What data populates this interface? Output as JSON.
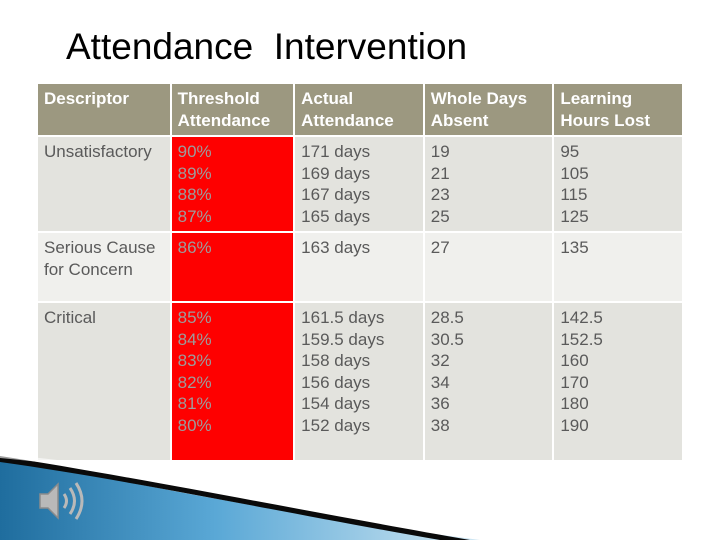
{
  "title": "Attendance  Intervention",
  "table": {
    "headers": [
      [
        "Descriptor"
      ],
      [
        "Threshold",
        "Attendance"
      ],
      [
        "Actual",
        "Attendance"
      ],
      [
        "Whole Days",
        "Absent"
      ],
      [
        "Learning",
        "Hours Lost"
      ]
    ],
    "rows": [
      {
        "descriptor": [
          "Unsatisfactory"
        ],
        "threshold": [
          "90%",
          "89%",
          "88%",
          "87%"
        ],
        "actual": [
          "171 days",
          "169 days",
          "167 days",
          "165 days"
        ],
        "absent": [
          "19",
          "21",
          "23",
          "25"
        ],
        "hours": [
          "95",
          "105",
          "115",
          "125"
        ]
      },
      {
        "descriptor": [
          "Serious Cause",
          "for Concern"
        ],
        "threshold": [
          "86%"
        ],
        "actual": [
          "163 days"
        ],
        "absent": [
          "27"
        ],
        "hours": [
          "135"
        ]
      },
      {
        "descriptor": [
          "Critical"
        ],
        "threshold": [
          "85%",
          "84%",
          "83%",
          "82%",
          "81%",
          "80%"
        ],
        "actual": [
          "161.5 days",
          "159.5 days",
          "158 days",
          "156 days",
          "154 days",
          "152 days"
        ],
        "absent": [
          "28.5",
          "30.5",
          "32",
          "34",
          "36",
          "38"
        ],
        "hours": [
          "142.5",
          "152.5",
          "160",
          "170",
          "180",
          "190"
        ]
      }
    ]
  },
  "colors": {
    "header_bg": "#9c9880",
    "threshold_bg": "#fe0000",
    "swoosh_blue": "#2a7fb0"
  },
  "icons": {
    "audio": "speaker-icon"
  }
}
